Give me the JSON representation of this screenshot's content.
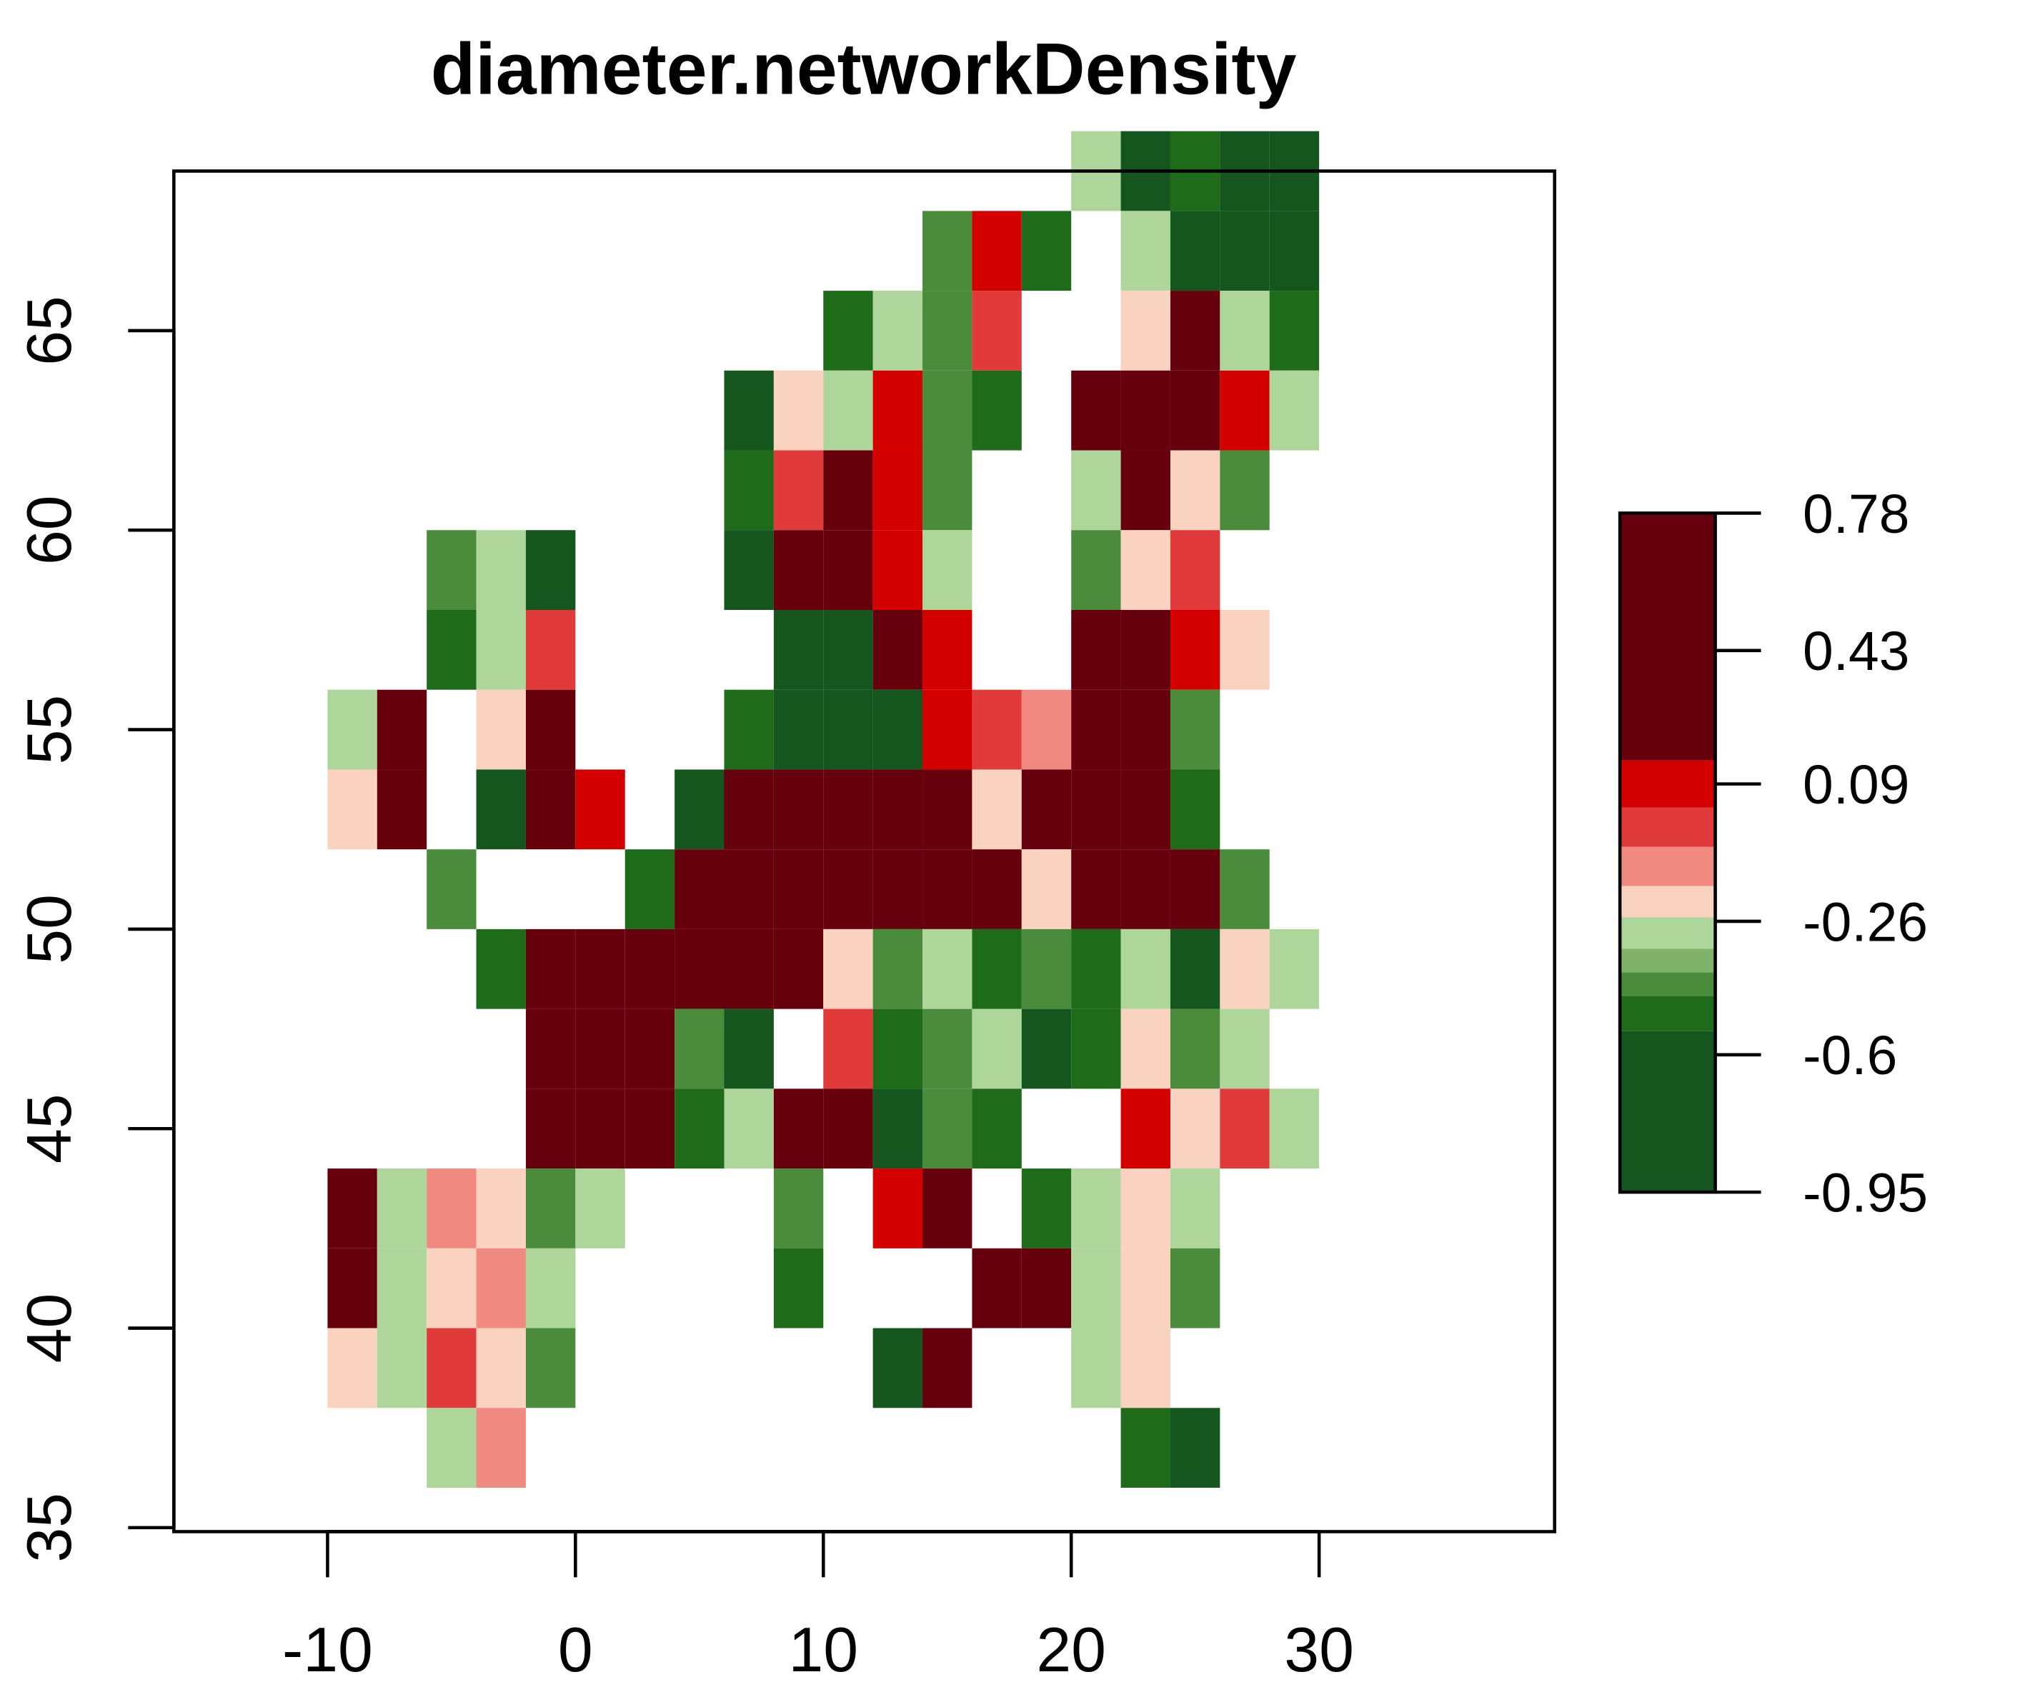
{
  "chart_data": {
    "type": "raster",
    "title": "diameter.networkDensity",
    "xlim": [
      -16.2,
      39.5
    ],
    "xticks": [
      -10,
      0,
      10,
      20,
      30
    ],
    "ylim": [
      34.9,
      69
    ],
    "yticks": [
      35,
      40,
      45,
      50,
      55,
      60,
      65
    ],
    "rows": [
      {
        "lat": 68,
        "lon0": 20,
        "values": [
          -0.3,
          -0.6,
          -0.5,
          -0.7,
          -0.8
        ]
      },
      {
        "lat": 66,
        "lon0": 14,
        "values": [
          -0.4,
          0.1,
          -0.5,
          null,
          -0.3,
          -0.6,
          -0.7,
          -0.8
        ]
      },
      {
        "lat": 64,
        "lon0": 10,
        "values": [
          -0.5,
          -0.3,
          -0.4,
          0.0,
          null,
          null,
          -0.2,
          0.3,
          -0.3,
          -0.5
        ]
      },
      {
        "lat": 62,
        "lon0": 6,
        "values": [
          -0.6,
          -0.2,
          -0.3,
          0.1,
          -0.4,
          -0.5,
          null,
          0.4,
          0.5,
          0.3,
          0.1,
          -0.3
        ]
      },
      {
        "lat": 60,
        "lon0": 6,
        "values": [
          -0.5,
          0.0,
          0.2,
          0.1,
          -0.4,
          null,
          null,
          -0.3,
          0.2,
          -0.2,
          -0.4
        ]
      },
      {
        "lat": 58,
        "lon0": -6,
        "values": [
          -0.4,
          -0.3,
          -0.6,
          null,
          null,
          null,
          -0.6,
          0.3,
          0.2,
          0.1,
          -0.3,
          null,
          null,
          -0.4,
          -0.2,
          0.0
        ]
      },
      {
        "lat": 56,
        "lon0": -6,
        "values": [
          -0.5,
          -0.3,
          0.0,
          null,
          null,
          null,
          null,
          -0.7,
          -0.8,
          0.3,
          0.1,
          null,
          null,
          0.3,
          0.4,
          0.1,
          -0.2
        ]
      },
      {
        "lat": 54,
        "lon0": -10,
        "values": [
          -0.3,
          0.4,
          null,
          -0.2,
          0.2,
          null,
          null,
          null,
          -0.5,
          -0.7,
          -0.8,
          -0.6,
          0.1,
          0.0,
          -0.1,
          0.3,
          0.4,
          -0.4
        ]
      },
      {
        "lat": 52,
        "lon0": -10,
        "values": [
          -0.2,
          0.5,
          null,
          -0.6,
          0.4,
          0.1,
          null,
          -0.7,
          0.3,
          0.5,
          0.4,
          0.3,
          0.2,
          -0.2,
          0.4,
          0.5,
          0.3,
          -0.5
        ]
      },
      {
        "lat": 50,
        "lon0": -6,
        "values": [
          -0.4,
          null,
          null,
          null,
          -0.5,
          0.3,
          0.4,
          0.5,
          0.3,
          0.2,
          0.4,
          0.5,
          -0.2,
          0.2,
          0.5,
          0.3,
          -0.4
        ]
      },
      {
        "lat": 48,
        "lon0": -4,
        "values": [
          -0.5,
          0.3,
          0.4,
          0.5,
          0.3,
          0.2,
          0.5,
          -0.2,
          -0.4,
          -0.3,
          -0.5,
          -0.4,
          -0.5,
          -0.3,
          -0.6,
          -0.2,
          -0.3
        ]
      },
      {
        "lat": 46,
        "lon0": -2,
        "values": [
          0.3,
          0.5,
          0.6,
          -0.4,
          -0.6,
          null,
          0.0,
          -0.5,
          -0.4,
          -0.3,
          -0.6,
          -0.5,
          -0.2,
          -0.4,
          -0.3
        ]
      },
      {
        "lat": 44,
        "lon0": -2,
        "values": [
          0.2,
          0.4,
          0.5,
          -0.5,
          -0.3,
          0.4,
          0.3,
          -0.6,
          -0.4,
          -0.5,
          null,
          null,
          0.1,
          -0.2,
          0.0,
          -0.3
        ]
      },
      {
        "lat": 42,
        "lon0": -10,
        "values": [
          0.5,
          -0.3,
          -0.1,
          -0.2,
          -0.4,
          -0.3,
          null,
          null,
          null,
          -0.4,
          null,
          0.1,
          0.2,
          null,
          -0.5,
          -0.3,
          -0.2,
          -0.3
        ]
      },
      {
        "lat": 40,
        "lon0": -10,
        "values": [
          0.4,
          -0.3,
          -0.2,
          -0.1,
          -0.3,
          null,
          null,
          null,
          null,
          -0.5,
          null,
          null,
          null,
          0.3,
          0.5,
          -0.3,
          -0.2,
          -0.4
        ]
      },
      {
        "lat": 38,
        "lon0": -10,
        "values": [
          -0.2,
          -0.3,
          0.0,
          -0.2,
          -0.4,
          null,
          null,
          null,
          null,
          null,
          null,
          -0.6,
          0.2,
          null,
          null,
          -0.3,
          -0.2
        ]
      },
      {
        "lat": 36,
        "lon0": -6,
        "values": [
          -0.3,
          -0.1,
          null,
          null,
          null,
          null,
          null,
          null,
          null,
          null,
          null,
          null,
          null,
          null,
          -0.5,
          -0.6
        ]
      }
    ],
    "legend": {
      "zlim": [
        -0.95,
        0.78
      ],
      "ticks": [
        0.78,
        0.43,
        0.09,
        -0.26,
        -0.6,
        -0.95
      ],
      "breaks": [
        -0.95,
        -0.54,
        -0.45,
        -0.39,
        -0.33,
        -0.25,
        -0.17,
        -0.07,
        0.03,
        0.15,
        0.78
      ],
      "colors": [
        "#15561f",
        "#1e6b1a",
        "#4a8c3c",
        "#7fb36a",
        "#aed59a",
        "#f9d3c0",
        "#f08a80",
        "#e03a3a",
        "#d40000",
        "#67000d"
      ]
    }
  }
}
